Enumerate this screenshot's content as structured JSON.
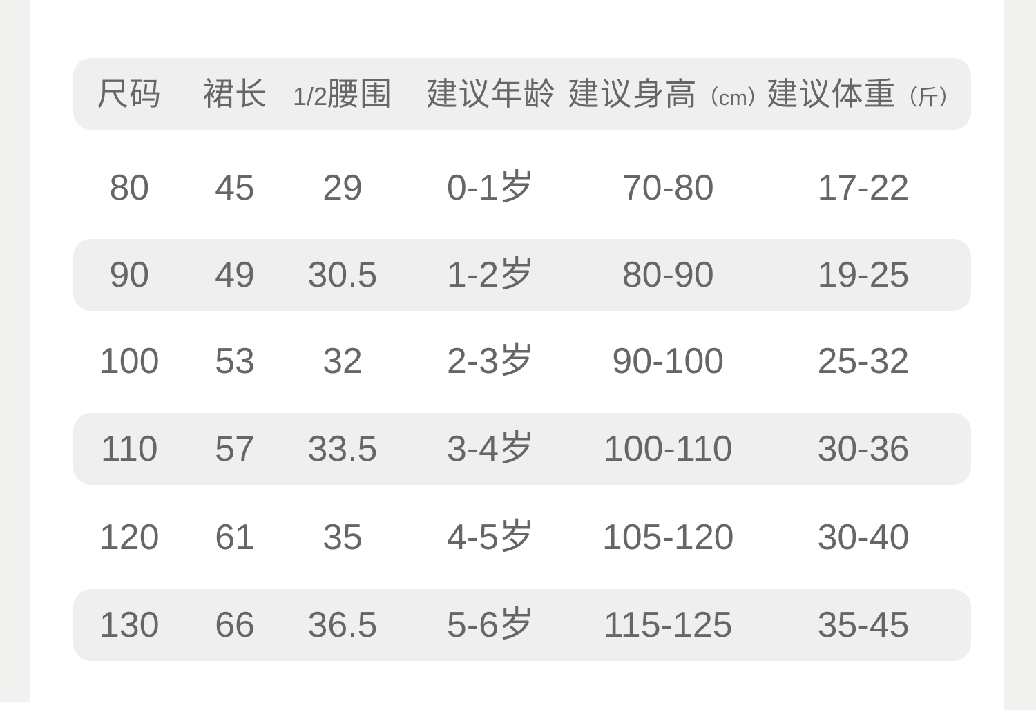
{
  "colors": {
    "background": "#ffffff",
    "side_strip": "#f1f1f0",
    "row_band": "#efefef",
    "text": "#666666"
  },
  "header_display": [
    {
      "main": "尺码"
    },
    {
      "main": "裙长"
    },
    {
      "prefix": "1/2",
      "main": "腰围"
    },
    {
      "main": "建议年龄"
    },
    {
      "main": "建议身高",
      "unit": "（cm）"
    },
    {
      "main": "建议体重",
      "unit": "（斤）"
    }
  ],
  "chart_data": {
    "type": "table",
    "columns": [
      "尺码",
      "裙长",
      "1/2腰围",
      "建议年龄",
      "建议身高(cm)",
      "建议体重(斤)"
    ],
    "rows": [
      [
        "80",
        "45",
        "29",
        "0-1岁",
        "70-80",
        "17-22"
      ],
      [
        "90",
        "49",
        "30.5",
        "1-2岁",
        "80-90",
        "19-25"
      ],
      [
        "100",
        "53",
        "32",
        "2-3岁",
        "90-100",
        "25-32"
      ],
      [
        "110",
        "57",
        "33.5",
        "3-4岁",
        "100-110",
        "30-36"
      ],
      [
        "120",
        "61",
        "35",
        "4-5岁",
        "105-120",
        "30-40"
      ],
      [
        "130",
        "66",
        "36.5",
        "5-6岁",
        "115-125",
        "35-45"
      ]
    ],
    "shaded_row_indices": [
      1,
      3,
      5
    ],
    "layout": {
      "header_band": true,
      "rounded_corners": true,
      "grid": "off"
    }
  }
}
